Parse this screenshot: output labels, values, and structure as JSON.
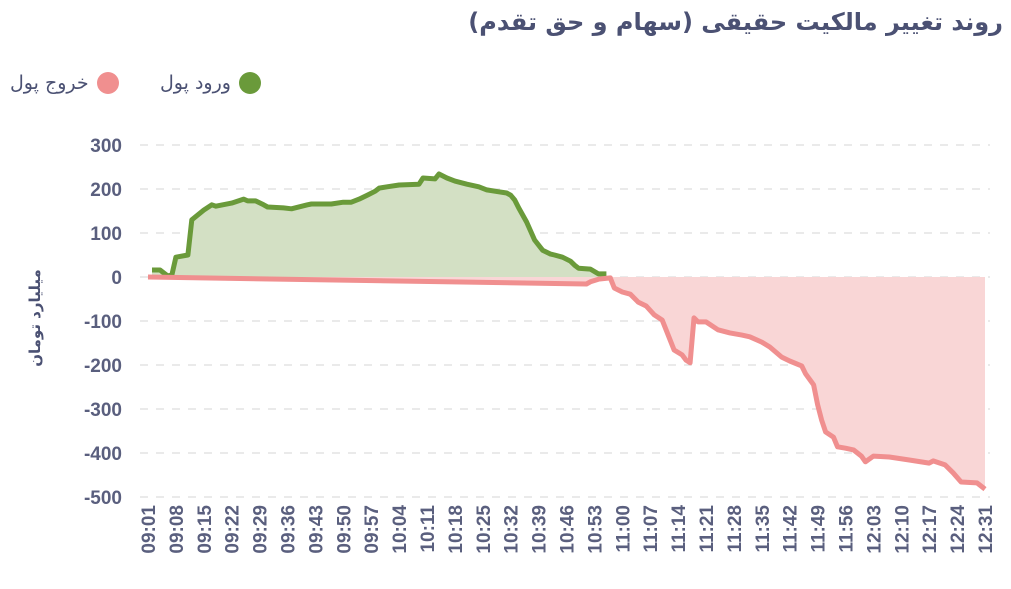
{
  "chart_data": {
    "type": "area",
    "title": "روند تغییر مالکیت حقیقی (سهام و حق تقدم)",
    "ylabel": "میلیارد تومان",
    "xlabel": "",
    "ylim": [
      -500,
      300
    ],
    "yticks": [
      "300",
      "200",
      "100",
      "0",
      "-100",
      "-200",
      "-300",
      "-400",
      "-500"
    ],
    "ytick_values": [
      300,
      200,
      100,
      0,
      -100,
      -200,
      -300,
      -400,
      -500
    ],
    "x_unit": "minutes after 09:00",
    "xlim": [
      1,
      211
    ],
    "xticks": [
      "09:01",
      "09:08",
      "09:15",
      "09:22",
      "09:29",
      "09:36",
      "09:43",
      "09:50",
      "09:57",
      "10:04",
      "10:11",
      "10:18",
      "10:25",
      "10:32",
      "10:39",
      "10:46",
      "10:53",
      "11:00",
      "11:07",
      "11:14",
      "11:21",
      "11:28",
      "11:35",
      "11:42",
      "11:49",
      "11:56",
      "12:03",
      "12:10",
      "12:17",
      "12:24",
      "12:31"
    ],
    "grid": true,
    "legend_position": "top-left",
    "series": [
      {
        "name": "ورود پول",
        "color": "#6a9a3a",
        "fill": "#d3e0c4",
        "x": [
          2,
          4,
          6,
          7,
          8,
          11,
          12,
          15,
          17,
          18,
          22,
          25,
          26,
          28,
          30,
          31,
          35,
          37,
          41,
          42,
          47,
          50,
          52,
          54,
          56,
          58,
          59,
          61,
          64,
          69,
          70,
          73,
          74,
          76,
          78,
          81,
          84,
          86,
          88,
          91,
          92,
          93,
          94,
          96,
          98,
          100,
          102,
          103,
          105,
          107,
          108,
          109,
          112,
          114,
          116
        ],
        "values": [
          16,
          16,
          2,
          5,
          45,
          50,
          130,
          152,
          164,
          161,
          168,
          177,
          173,
          173,
          164,
          159,
          157,
          155,
          164,
          166,
          166,
          170,
          170,
          177,
          186,
          195,
          202,
          205,
          209,
          211,
          225,
          223,
          234,
          225,
          218,
          211,
          205,
          198,
          195,
          191,
          186,
          175,
          157,
          125,
          84,
          61,
          52,
          50,
          45,
          36,
          27,
          20,
          18,
          7,
          7
        ]
      },
      {
        "name": "خروج پول",
        "color": "#f08f8f",
        "fill": "#f9d6d6",
        "x": [
          1,
          111,
          112,
          114,
          117,
          118,
          120,
          122,
          124,
          126,
          128,
          130,
          132,
          133,
          135,
          136,
          137,
          138,
          139,
          141,
          144,
          147,
          150,
          152,
          155,
          157,
          160,
          162,
          165,
          166,
          168,
          169,
          170,
          171,
          173,
          174,
          176,
          178,
          180,
          181,
          183,
          187,
          192,
          197,
          198,
          201,
          203,
          205,
          209,
          211
        ],
        "values": [
          0,
          -16,
          -11,
          -5,
          -2,
          -25,
          -34,
          -39,
          -57,
          -66,
          -86,
          -98,
          -143,
          -166,
          -177,
          -189,
          -195,
          -93,
          -102,
          -102,
          -120,
          -127,
          -132,
          -136,
          -148,
          -159,
          -182,
          -191,
          -202,
          -220,
          -245,
          -290,
          -325,
          -352,
          -364,
          -386,
          -389,
          -393,
          -407,
          -420,
          -407,
          -409,
          -416,
          -423,
          -418,
          -427,
          -445,
          -466,
          -468,
          -482
        ]
      }
    ]
  }
}
